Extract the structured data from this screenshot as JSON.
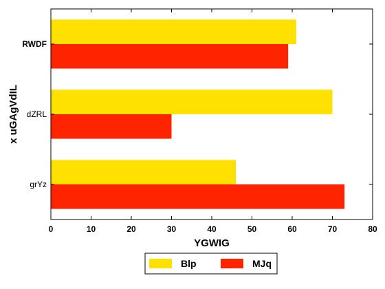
{
  "chart_data": {
    "type": "bar",
    "orientation": "horizontal",
    "categories": [
      "RWDF",
      "dZRL",
      "grYz"
    ],
    "series": [
      {
        "name": "Blp",
        "values": [
          61,
          70,
          46
        ],
        "color": "#ffe100"
      },
      {
        "name": "MJq",
        "values": [
          59,
          30,
          73
        ],
        "color": "#ff2400"
      }
    ],
    "xlabel": "YGWIG",
    "ylabel": "x uGAgVdIL",
    "xlim": [
      0,
      80
    ],
    "xticks": [
      "0",
      "10",
      "20",
      "30",
      "40",
      "50",
      "60",
      "70",
      "80"
    ],
    "grid": false,
    "legend_position": "bottom-center"
  }
}
